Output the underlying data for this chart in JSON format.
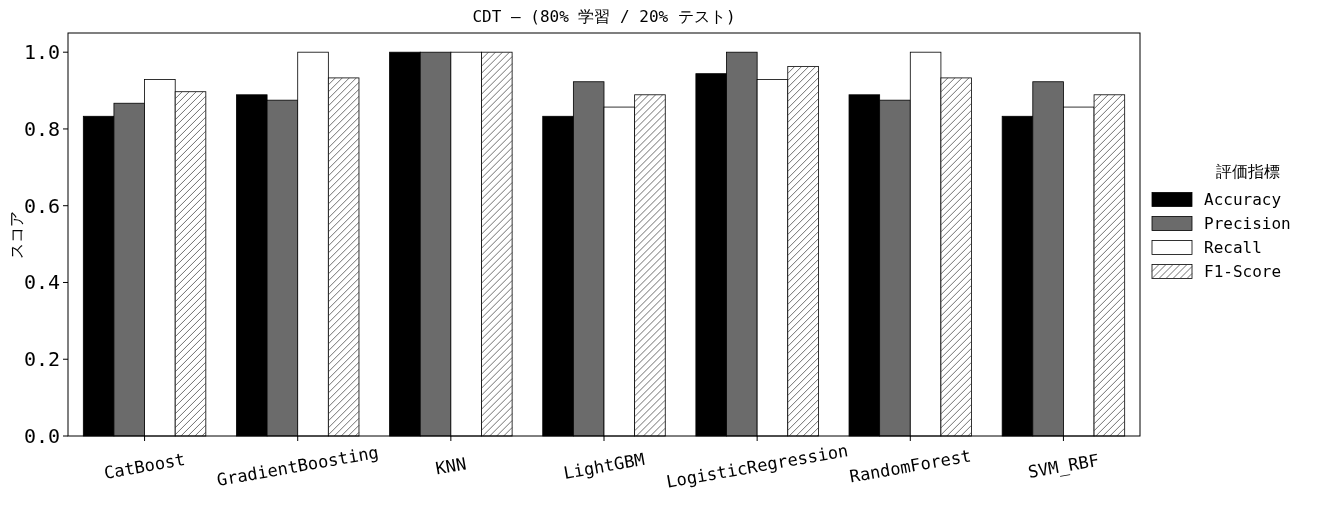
{
  "chart_data": {
    "type": "bar",
    "title": "CDT — (80% 学習 / 20% テスト)",
    "ylabel": "スコア",
    "legend_title": "評価指標",
    "legend": "right",
    "categories": [
      "CatBoost",
      "GradientBoosting",
      "KNN",
      "LightGBM",
      "LogisticRegression",
      "RandomForest",
      "SVM_RBF"
    ],
    "ylim": [
      0,
      1.05
    ],
    "yticks": [
      {
        "value": 0,
        "label": "0.0"
      },
      {
        "value": 0.2,
        "label": "0.2"
      },
      {
        "value": 0.4,
        "label": "0.4"
      },
      {
        "value": 0.6,
        "label": "0.6"
      },
      {
        "value": 0.8,
        "label": "0.8"
      },
      {
        "value": 1,
        "label": "1.0"
      }
    ],
    "series": [
      {
        "name": "Accuracy",
        "color": "#000000",
        "values": [
          0.833,
          0.889,
          1.0,
          0.833,
          0.944,
          0.889,
          0.833
        ]
      },
      {
        "name": "Precision",
        "color": "#6b6b6b",
        "values": [
          0.867,
          0.875,
          1.0,
          0.923,
          1.0,
          0.875,
          0.923
        ]
      },
      {
        "name": "Recall",
        "color": "#ffffff",
        "values": [
          0.929,
          1.0,
          1.0,
          0.857,
          0.929,
          1.0,
          0.857
        ]
      },
      {
        "name": "F1-Score",
        "color": "#ffffff",
        "values": [
          0.897,
          0.933,
          1.0,
          0.889,
          0.963,
          0.933,
          0.889
        ]
      }
    ]
  }
}
